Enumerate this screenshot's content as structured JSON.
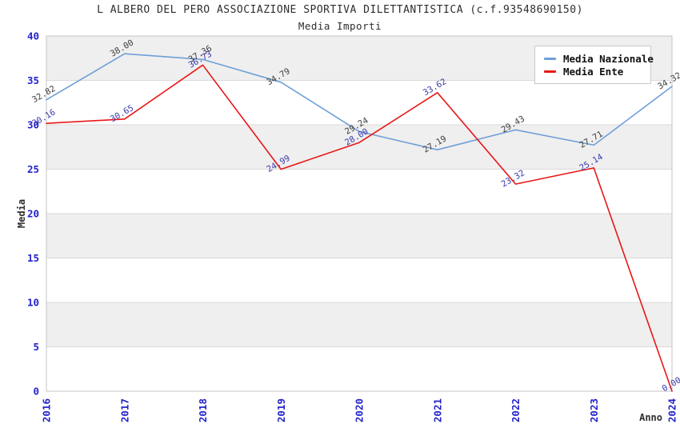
{
  "chart_data": {
    "type": "line",
    "title": "L ALBERO DEL PERO ASSOCIAZIONE SPORTIVA DILETTANTISTICA (c.f.93548690150)",
    "subtitle": "Media Importi",
    "x": [
      2016,
      2017,
      2018,
      2019,
      2020,
      2021,
      2022,
      2023,
      2024
    ],
    "series": [
      {
        "name": "Media Nazionale",
        "color": "#6f9fd8",
        "label_color": "#3d3d3d",
        "values": [
          32.82,
          38.0,
          37.36,
          34.79,
          29.24,
          27.19,
          29.43,
          27.71,
          34.32
        ]
      },
      {
        "name": "Media Ente",
        "color": "#e81717",
        "label_color": "#3a3aae",
        "values": [
          30.16,
          30.65,
          36.73,
          24.99,
          28.0,
          33.62,
          23.32,
          25.14,
          0.0
        ]
      }
    ],
    "xlabel": "Anno",
    "ylabel": "Media",
    "ylim": [
      0,
      40
    ],
    "ytick_step": 5,
    "yticks": [
      0,
      5,
      10,
      15,
      20,
      25,
      30,
      35,
      40
    ],
    "grid": "horizontal gridlines with alternating shaded bands",
    "legend_position": "top-right",
    "styles": {
      "tick_label_color": "#2222cc",
      "band_color": "#efefef",
      "grid_color": "#d9d9d9",
      "plot_border_color": "#c4c4c4",
      "title_color": "#2e2e2e"
    }
  }
}
